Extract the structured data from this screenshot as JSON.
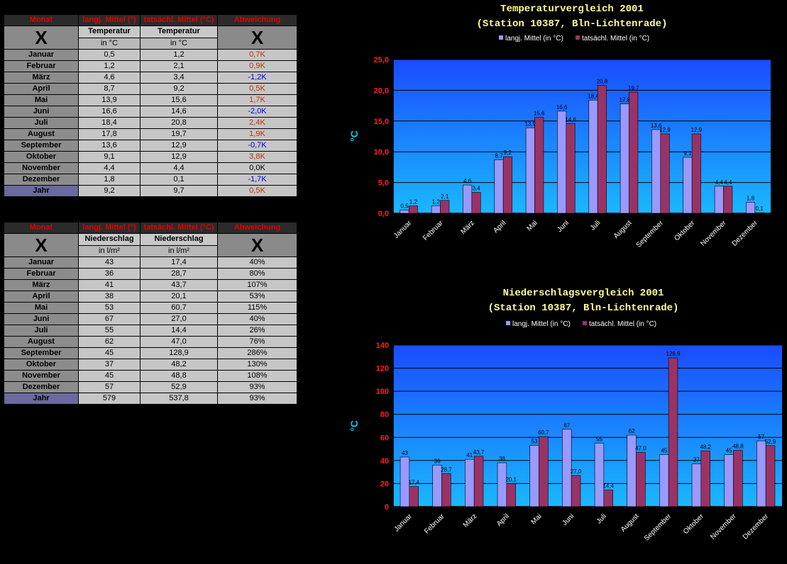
{
  "table1": {
    "headers": [
      "Monat",
      "langj. Mittel (°)",
      "tatsächl. Mittel (°C)",
      "Abweichung"
    ],
    "x_mark": "X",
    "sub_head": [
      "Temperatur",
      "Temperatur"
    ],
    "sub_unit": [
      "in °C",
      "in °C"
    ],
    "rows": [
      {
        "month": "Januar",
        "a": "0,5",
        "b": "1,2",
        "d": "0,7K",
        "s": "pos"
      },
      {
        "month": "Februar",
        "a": "1,2",
        "b": "2,1",
        "d": "0,9K",
        "s": "pos"
      },
      {
        "month": "März",
        "a": "4,6",
        "b": "3,4",
        "d": "-1,2K",
        "s": "neg"
      },
      {
        "month": "April",
        "a": "8,7",
        "b": "9,2",
        "d": "0,5K",
        "s": "pos"
      },
      {
        "month": "Mai",
        "a": "13,9",
        "b": "15,6",
        "d": "1,7K",
        "s": "pos"
      },
      {
        "month": "Juni",
        "a": "16,6",
        "b": "14,6",
        "d": "-2,0K",
        "s": "neg"
      },
      {
        "month": "Juli",
        "a": "18,4",
        "b": "20,8",
        "d": "2,4K",
        "s": "pos"
      },
      {
        "month": "August",
        "a": "17,8",
        "b": "19,7",
        "d": "1,9K",
        "s": "pos"
      },
      {
        "month": "September",
        "a": "13,6",
        "b": "12,9",
        "d": "-0,7K",
        "s": "neg"
      },
      {
        "month": "Oktober",
        "a": "9,1",
        "b": "12,9",
        "d": "3,8K",
        "s": "pos"
      },
      {
        "month": "November",
        "a": "4,4",
        "b": "4,4",
        "d": "0,0K",
        "s": "zero"
      },
      {
        "month": "Dezember",
        "a": "1,8",
        "b": "0,1",
        "d": "-1,7K",
        "s": "neg"
      }
    ],
    "total": {
      "month": "Jahr",
      "a": "9,2",
      "b": "9,7",
      "d": "0,5K",
      "s": "pos"
    }
  },
  "table2": {
    "headers": [
      "Monat",
      "langj. Mittel (°)",
      "tatsächl. Mittel (°C)",
      "Abweichung"
    ],
    "x_mark": "X",
    "sub_head": [
      "Niederschlag",
      "Niederschlag"
    ],
    "sub_unit": [
      "in l/m²",
      "in l/m²"
    ],
    "rows": [
      {
        "month": "Januar",
        "a": "43",
        "b": "17,4",
        "d": "40%"
      },
      {
        "month": "Februar",
        "a": "36",
        "b": "28,7",
        "d": "80%"
      },
      {
        "month": "März",
        "a": "41",
        "b": "43,7",
        "d": "107%"
      },
      {
        "month": "April",
        "a": "38",
        "b": "20,1",
        "d": "53%"
      },
      {
        "month": "Mai",
        "a": "53",
        "b": "60,7",
        "d": "115%"
      },
      {
        "month": "Juni",
        "a": "67",
        "b": "27,0",
        "d": "40%"
      },
      {
        "month": "Juli",
        "a": "55",
        "b": "14,4",
        "d": "26%"
      },
      {
        "month": "August",
        "a": "62",
        "b": "47,0",
        "d": "76%"
      },
      {
        "month": "September",
        "a": "45",
        "b": "128,9",
        "d": "286%"
      },
      {
        "month": "Oktober",
        "a": "37",
        "b": "48,2",
        "d": "130%"
      },
      {
        "month": "November",
        "a": "45",
        "b": "48,8",
        "d": "108%"
      },
      {
        "month": "Dezember",
        "a": "57",
        "b": "52,9",
        "d": "93%"
      }
    ],
    "total": {
      "month": "Jahr",
      "a": "579",
      "b": "537,8",
      "d": "93%"
    }
  },
  "chart_data": [
    {
      "type": "bar",
      "title": "Temperaturvergleich 2001",
      "subtitle": "(Station 10387, Bln-Lichtenrade)",
      "ylabel": "°C",
      "ylim": [
        0,
        25
      ],
      "yticks": [
        "0,0",
        "5,0",
        "10,0",
        "15,0",
        "20,0",
        "25,0"
      ],
      "categories": [
        "Januar",
        "Februar",
        "März",
        "April",
        "Mai",
        "Juni",
        "Juli",
        "August",
        "September",
        "Oktober",
        "November",
        "Dezember"
      ],
      "series": [
        {
          "name": "langj. Mittel (in °C)",
          "color": "#9999ff",
          "values": [
            0.5,
            1.2,
            4.6,
            8.7,
            13.9,
            16.6,
            18.4,
            17.8,
            13.6,
            9.1,
            4.4,
            1.8
          ],
          "labels": [
            "0,5",
            "1,2",
            "4,6",
            "8,7",
            "13,9",
            "16,6",
            "18,4",
            "17,8",
            "13,6",
            "9,1",
            "4,4",
            "1,8"
          ]
        },
        {
          "name": "tatsächl. Mittel (in °C)",
          "color": "#993366",
          "values": [
            1.2,
            2.1,
            3.4,
            9.2,
            15.6,
            14.6,
            20.8,
            19.7,
            12.9,
            12.9,
            4.4,
            0.1
          ],
          "labels": [
            "1,2",
            "2,1",
            "3,4",
            "9,2",
            "15,6",
            "14,6",
            "20,8",
            "19,7",
            "12,9",
            "12,9",
            "4,4",
            "0,1"
          ]
        }
      ],
      "grid": true,
      "legend": "top"
    },
    {
      "type": "bar",
      "title": "Niederschlagsvergleich 2001",
      "subtitle": "(Station 10387, Bln-Lichtenrade)",
      "ylabel": "°C",
      "ylim": [
        0,
        140
      ],
      "yticks": [
        "0",
        "20",
        "40",
        "60",
        "80",
        "100",
        "120",
        "140"
      ],
      "categories": [
        "Januar",
        "Februar",
        "März",
        "April",
        "Mai",
        "Juni",
        "Juli",
        "August",
        "September",
        "Oktober",
        "November",
        "Dezember"
      ],
      "series": [
        {
          "name": "langj. Mittel (in °C)",
          "color": "#9999ff",
          "values": [
            43,
            36,
            41,
            38,
            53,
            67,
            55,
            62,
            45,
            37,
            45,
            57
          ],
          "labels": [
            "43",
            "36",
            "41",
            "38",
            "53",
            "67",
            "55",
            "62",
            "45",
            "37",
            "45",
            "57"
          ]
        },
        {
          "name": "tatsächl. Mittel (in °C)",
          "color": "#993366",
          "values": [
            17.4,
            28.7,
            43.7,
            20.1,
            60.7,
            27.0,
            14.4,
            47.0,
            128.9,
            48.2,
            48.8,
            52.9
          ],
          "labels": [
            "17,4",
            "28,7",
            "43,7",
            "20,1",
            "60,7",
            "27,0",
            "14,4",
            "47,0",
            "128,9",
            "48,2",
            "48,8",
            "52,9"
          ]
        }
      ],
      "grid": true,
      "legend": "top"
    }
  ]
}
